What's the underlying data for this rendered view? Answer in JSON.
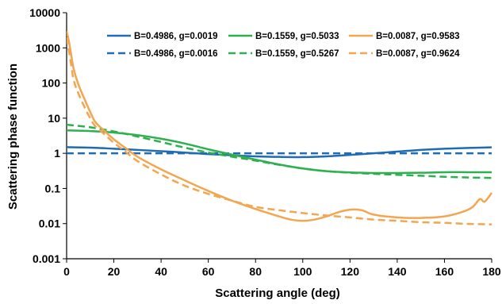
{
  "chart_data": {
    "type": "line",
    "xlabel": "Scattering angle (deg)",
    "ylabel": "Scattering phase function",
    "xlim": [
      0,
      180
    ],
    "ylim": [
      0.001,
      10000
    ],
    "yscale": "log",
    "x_ticks": [
      "0",
      "20",
      "40",
      "60",
      "80",
      "100",
      "120",
      "140",
      "160",
      "180"
    ],
    "y_ticks": [
      "0.001",
      "0.01",
      "0.1",
      "1",
      "10",
      "100",
      "1000",
      "10000"
    ],
    "grid": false,
    "legend_position": "top-right",
    "series": [
      {
        "name": "B=0.4986, g=0.0019",
        "color": "#1f6bb5",
        "dash": false,
        "points": [
          [
            0,
            1.5
          ],
          [
            10,
            1.45
          ],
          [
            20,
            1.35
          ],
          [
            30,
            1.25
          ],
          [
            40,
            1.15
          ],
          [
            50,
            1.05
          ],
          [
            60,
            0.95
          ],
          [
            70,
            0.88
          ],
          [
            80,
            0.82
          ],
          [
            90,
            0.79
          ],
          [
            100,
            0.78
          ],
          [
            110,
            0.82
          ],
          [
            120,
            0.9
          ],
          [
            130,
            1.0
          ],
          [
            140,
            1.12
          ],
          [
            150,
            1.25
          ],
          [
            160,
            1.35
          ],
          [
            170,
            1.42
          ],
          [
            180,
            1.48
          ]
        ]
      },
      {
        "name": "B=0.4986, g=0.0016",
        "color": "#1f6bb5",
        "dash": true,
        "points": [
          [
            0,
            1.0
          ],
          [
            30,
            1.0
          ],
          [
            60,
            1.0
          ],
          [
            90,
            1.0
          ],
          [
            120,
            1.0
          ],
          [
            150,
            1.0
          ],
          [
            180,
            1.0
          ]
        ]
      },
      {
        "name": "B=0.1559, g=0.5033",
        "color": "#2eb04f",
        "dash": false,
        "points": [
          [
            0,
            4.5
          ],
          [
            10,
            4.3
          ],
          [
            20,
            3.9
          ],
          [
            30,
            3.3
          ],
          [
            40,
            2.6
          ],
          [
            50,
            1.9
          ],
          [
            60,
            1.3
          ],
          [
            70,
            0.92
          ],
          [
            80,
            0.66
          ],
          [
            90,
            0.48
          ],
          [
            100,
            0.37
          ],
          [
            110,
            0.31
          ],
          [
            120,
            0.285
          ],
          [
            130,
            0.275
          ],
          [
            140,
            0.275
          ],
          [
            150,
            0.28
          ],
          [
            160,
            0.29
          ],
          [
            170,
            0.29
          ],
          [
            180,
            0.29
          ]
        ]
      },
      {
        "name": "B=0.1559, g=0.5267",
        "color": "#2eb04f",
        "dash": true,
        "points": [
          [
            0,
            6.5
          ],
          [
            10,
            5.5
          ],
          [
            20,
            4.2
          ],
          [
            30,
            3.0
          ],
          [
            40,
            2.1
          ],
          [
            50,
            1.45
          ],
          [
            60,
            1.05
          ],
          [
            70,
            0.8
          ],
          [
            80,
            0.62
          ],
          [
            90,
            0.47
          ],
          [
            100,
            0.37
          ],
          [
            110,
            0.31
          ],
          [
            120,
            0.28
          ],
          [
            130,
            0.26
          ],
          [
            140,
            0.245
          ],
          [
            150,
            0.23
          ],
          [
            160,
            0.215
          ],
          [
            170,
            0.205
          ],
          [
            180,
            0.2
          ]
        ]
      },
      {
        "name": "B=0.0087, g=0.9583",
        "color": "#f2a650",
        "dash": false,
        "points": [
          [
            0,
            3000
          ],
          [
            1,
            1500
          ],
          [
            2,
            600
          ],
          [
            3,
            250
          ],
          [
            5,
            90
          ],
          [
            8,
            30
          ],
          [
            10,
            15
          ],
          [
            12,
            8
          ],
          [
            15,
            5
          ],
          [
            20,
            2.5
          ],
          [
            25,
            1.4
          ],
          [
            30,
            0.8
          ],
          [
            40,
            0.35
          ],
          [
            50,
            0.17
          ],
          [
            60,
            0.085
          ],
          [
            70,
            0.045
          ],
          [
            80,
            0.026
          ],
          [
            90,
            0.016
          ],
          [
            95,
            0.013
          ],
          [
            100,
            0.012
          ],
          [
            105,
            0.013
          ],
          [
            110,
            0.016
          ],
          [
            115,
            0.021
          ],
          [
            120,
            0.025
          ],
          [
            125,
            0.024
          ],
          [
            130,
            0.018
          ],
          [
            140,
            0.015
          ],
          [
            150,
            0.0145
          ],
          [
            160,
            0.016
          ],
          [
            168,
            0.022
          ],
          [
            172,
            0.03
          ],
          [
            175,
            0.05
          ],
          [
            177,
            0.042
          ],
          [
            180,
            0.075
          ]
        ]
      },
      {
        "name": "B=0.0087, g=0.9624",
        "color": "#f2a650",
        "dash": true,
        "points": [
          [
            0,
            2000
          ],
          [
            1,
            800
          ],
          [
            2,
            300
          ],
          [
            3,
            120
          ],
          [
            5,
            50
          ],
          [
            8,
            18
          ],
          [
            10,
            10
          ],
          [
            12,
            6
          ],
          [
            15,
            4
          ],
          [
            20,
            2
          ],
          [
            25,
            1.1
          ],
          [
            30,
            0.6
          ],
          [
            40,
            0.25
          ],
          [
            50,
            0.12
          ],
          [
            60,
            0.07
          ],
          [
            70,
            0.045
          ],
          [
            80,
            0.03
          ],
          [
            90,
            0.024
          ],
          [
            100,
            0.02
          ],
          [
            110,
            0.017
          ],
          [
            120,
            0.015
          ],
          [
            130,
            0.013
          ],
          [
            140,
            0.012
          ],
          [
            150,
            0.011
          ],
          [
            160,
            0.0105
          ],
          [
            170,
            0.0098
          ],
          [
            180,
            0.0095
          ]
        ]
      }
    ]
  }
}
